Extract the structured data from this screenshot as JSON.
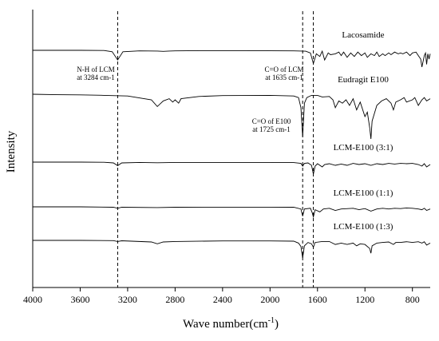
{
  "chart_data": {
    "type": "line",
    "xlabel": "Wave number(cm",
    "xlabel_sup": "-1",
    "xlabel_close": ")",
    "ylabel": "Intensity",
    "xlim": [
      4000,
      650
    ],
    "x_reversed": true,
    "x_ticks": [
      4000,
      3600,
      3200,
      2800,
      2400,
      2000,
      1600,
      1200,
      800
    ],
    "y_ticks": [],
    "grid": false,
    "reference_lines_cm-1": [
      3284,
      1725,
      1635
    ],
    "annotations": [
      {
        "lines": [
          "N-H of LCM",
          "at 3284 cm-1"
        ]
      },
      {
        "lines": [
          "C=O of LCM",
          "at 1635 cm-1"
        ]
      },
      {
        "lines": [
          "C=O of E100",
          "at 1725 cm-1"
        ]
      }
    ],
    "series": [
      {
        "name": "Lacosamide",
        "x": [
          4000,
          3600,
          3400,
          3330,
          3284,
          3240,
          3100,
          2950,
          2900,
          2850,
          2800,
          2600,
          2200,
          1800,
          1700,
          1660,
          1635,
          1610,
          1580,
          1560,
          1540,
          1510,
          1490,
          1450,
          1420,
          1400,
          1380,
          1350,
          1320,
          1290,
          1260,
          1230,
          1200,
          1180,
          1150,
          1120,
          1100,
          1080,
          1050,
          1030,
          1000,
          980,
          950,
          920,
          900,
          880,
          850,
          820,
          800,
          770,
          750,
          730,
          720,
          700,
          690,
          680,
          670,
          660,
          650
        ],
        "y": [
          0,
          0,
          -0.01,
          -0.08,
          -0.55,
          -0.08,
          -0.03,
          -0.04,
          -0.06,
          -0.04,
          -0.03,
          -0.02,
          -0.02,
          -0.03,
          -0.05,
          -0.15,
          -0.75,
          -0.2,
          -0.35,
          -0.05,
          -0.55,
          -0.15,
          -0.25,
          -0.2,
          -0.1,
          -0.3,
          -0.1,
          -0.4,
          -0.15,
          -0.35,
          -0.1,
          -0.3,
          -0.15,
          -0.4,
          -0.2,
          -0.3,
          -0.1,
          -0.35,
          -0.2,
          -0.3,
          -0.15,
          -0.25,
          -0.1,
          -0.2,
          -0.15,
          -0.2,
          -0.1,
          -0.3,
          -0.15,
          -0.1,
          -0.3,
          -0.5,
          -0.95,
          -0.3,
          -0.15,
          -0.8,
          -0.2,
          -0.5,
          -0.2
        ]
      },
      {
        "name": "Eudragit E100",
        "x": [
          4000,
          3800,
          3600,
          3400,
          3200,
          3000,
          2950,
          2900,
          2850,
          2820,
          2800,
          2770,
          2750,
          2600,
          2400,
          2000,
          1800,
          1760,
          1740,
          1725,
          1710,
          1690,
          1650,
          1600,
          1560,
          1500,
          1470,
          1450,
          1420,
          1390,
          1360,
          1330,
          1300,
          1270,
          1240,
          1200,
          1180,
          1160,
          1150,
          1140,
          1100,
          1060,
          1020,
          980,
          960,
          940,
          900,
          870,
          850,
          800,
          780,
          750,
          720,
          700,
          680,
          650
        ],
        "y": [
          0,
          -0.02,
          -0.03,
          -0.05,
          -0.08,
          -0.25,
          -0.55,
          -0.3,
          -0.2,
          -0.35,
          -0.25,
          -0.4,
          -0.2,
          -0.1,
          -0.06,
          -0.05,
          -0.08,
          -0.15,
          -0.6,
          -1.9,
          -0.4,
          -0.15,
          -0.05,
          -0.05,
          -0.12,
          -0.1,
          -0.25,
          -0.6,
          -0.3,
          -0.4,
          -0.25,
          -0.5,
          -0.2,
          -0.7,
          -0.35,
          -1.0,
          -0.8,
          -1.5,
          -2.0,
          -1.2,
          -0.5,
          -0.3,
          -0.2,
          -0.4,
          -0.7,
          -0.35,
          -0.25,
          -0.15,
          -0.35,
          -0.25,
          -0.15,
          -0.5,
          -0.25,
          -0.15,
          -0.3,
          -0.2
        ]
      },
      {
        "name": "LCM-E100 (3:1)",
        "x": [
          4000,
          3600,
          3400,
          3320,
          3284,
          3250,
          3100,
          2950,
          2800,
          2400,
          2000,
          1800,
          1740,
          1725,
          1710,
          1680,
          1650,
          1635,
          1620,
          1600,
          1560,
          1540,
          1500,
          1450,
          1400,
          1350,
          1300,
          1250,
          1200,
          1150,
          1100,
          1050,
          1000,
          950,
          900,
          850,
          800,
          750,
          720,
          700,
          680,
          650
        ],
        "y": [
          0,
          0,
          -0.01,
          -0.05,
          -0.22,
          -0.05,
          -0.02,
          -0.04,
          -0.02,
          -0.02,
          -0.02,
          -0.03,
          -0.08,
          -0.25,
          -0.08,
          -0.05,
          -0.2,
          -0.75,
          -0.25,
          -0.1,
          -0.3,
          -0.15,
          -0.1,
          -0.2,
          -0.12,
          -0.2,
          -0.08,
          -0.15,
          -0.1,
          -0.2,
          -0.1,
          -0.15,
          -0.08,
          -0.12,
          -0.08,
          -0.1,
          -0.08,
          -0.15,
          -0.25,
          -0.1,
          -0.3,
          -0.15
        ]
      },
      {
        "name": "LCM-E100 (1:1)",
        "x": [
          4000,
          3600,
          3320,
          3284,
          3250,
          2950,
          2800,
          2400,
          2000,
          1800,
          1740,
          1725,
          1710,
          1660,
          1645,
          1635,
          1620,
          1580,
          1550,
          1500,
          1450,
          1400,
          1300,
          1250,
          1200,
          1150,
          1100,
          1050,
          1000,
          950,
          900,
          850,
          800,
          750,
          720,
          700,
          680,
          650
        ],
        "y": [
          0,
          0,
          -0.03,
          -0.1,
          -0.03,
          -0.05,
          -0.03,
          -0.02,
          -0.02,
          -0.03,
          -0.15,
          -0.65,
          -0.15,
          -0.1,
          -0.4,
          -0.7,
          -0.2,
          -0.35,
          -0.15,
          -0.1,
          -0.25,
          -0.15,
          -0.1,
          -0.2,
          -0.12,
          -0.3,
          -0.15,
          -0.1,
          -0.15,
          -0.1,
          -0.12,
          -0.08,
          -0.1,
          -0.15,
          -0.2,
          -0.1,
          -0.25,
          -0.15
        ]
      },
      {
        "name": "LCM-E100 (1:3)",
        "x": [
          4000,
          3600,
          3320,
          3284,
          3250,
          3000,
          2950,
          2900,
          2800,
          2400,
          2000,
          1800,
          1760,
          1740,
          1725,
          1710,
          1680,
          1650,
          1635,
          1620,
          1560,
          1500,
          1450,
          1400,
          1350,
          1300,
          1270,
          1240,
          1200,
          1160,
          1150,
          1140,
          1100,
          1050,
          1000,
          960,
          940,
          900,
          850,
          800,
          750,
          720,
          700,
          680,
          650
        ],
        "y": [
          0,
          0,
          -0.02,
          -0.08,
          -0.03,
          -0.12,
          -0.25,
          -0.12,
          -0.08,
          -0.04,
          -0.04,
          -0.06,
          -0.2,
          -0.45,
          -1.3,
          -0.4,
          -0.15,
          -0.25,
          -0.5,
          -0.15,
          -0.08,
          -0.08,
          -0.3,
          -0.2,
          -0.3,
          -0.2,
          -0.4,
          -0.25,
          -0.3,
          -0.6,
          -0.95,
          -0.4,
          -0.2,
          -0.15,
          -0.12,
          -0.3,
          -0.15,
          -0.15,
          -0.1,
          -0.15,
          -0.1,
          -0.2,
          -0.1,
          -0.35,
          -0.2
        ]
      }
    ]
  }
}
